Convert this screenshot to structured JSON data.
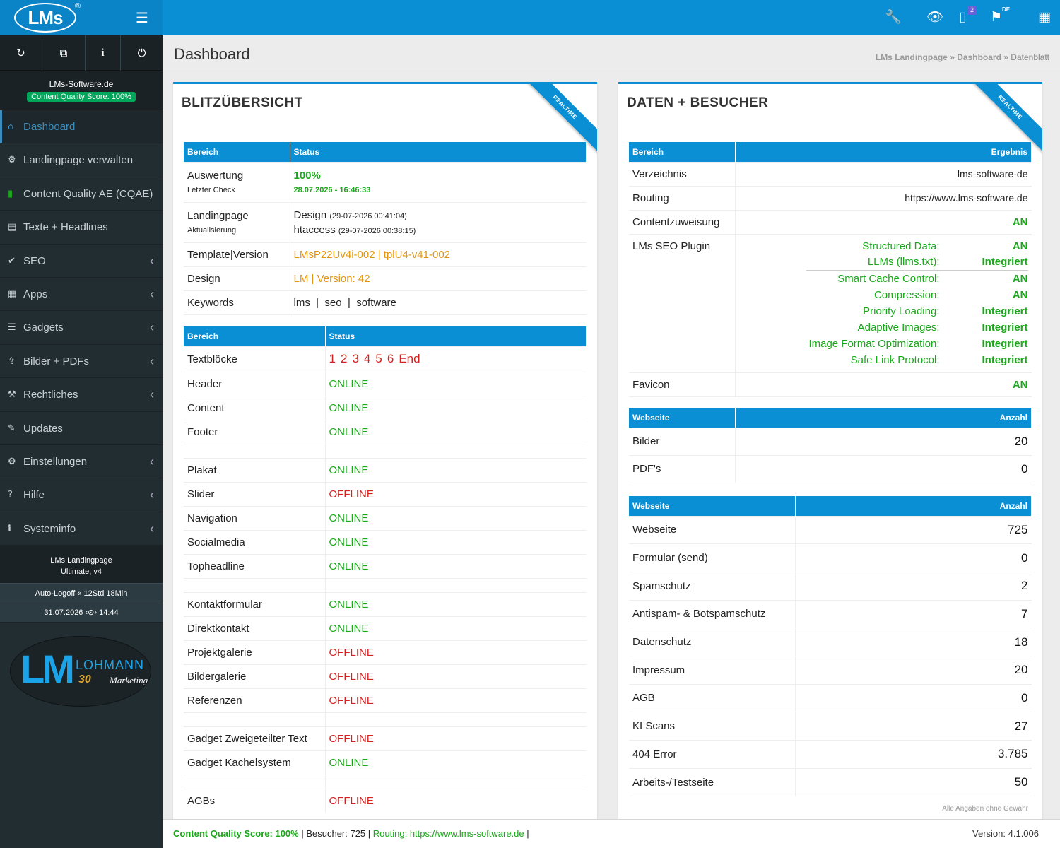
{
  "topbar": {
    "logo": "LMs",
    "reg": "®",
    "menu_icon": "☰",
    "badge_count": "2",
    "lang": "DE"
  },
  "quickbar": {
    "icons": [
      "refresh-icon",
      "copy-icon",
      "info-icon",
      "power-icon"
    ]
  },
  "sidebar": {
    "site": "LMs-Software.de",
    "quality": "Content Quality Score: 100%",
    "items": [
      {
        "label": "Dashboard",
        "icon": "home-icon",
        "glyph": "⌂",
        "chevron": false
      },
      {
        "label": "Landingpage verwalten",
        "icon": "gear-icon",
        "glyph": "⚙",
        "chevron": false
      },
      {
        "label": "Content Quality AE (CQAE)",
        "icon": "bar-chart-icon",
        "glyph": "▮",
        "chevron": false
      },
      {
        "label": "Texte + Headlines",
        "icon": "document-icon",
        "glyph": "▤",
        "chevron": false
      },
      {
        "label": "SEO",
        "icon": "check-icon",
        "glyph": "✔",
        "chevron": true
      },
      {
        "label": "Apps",
        "icon": "cubes-icon",
        "glyph": "▦",
        "chevron": true
      },
      {
        "label": "Gadgets",
        "icon": "list-icon",
        "glyph": "☰",
        "chevron": true
      },
      {
        "label": "Bilder + PDFs",
        "icon": "upload-icon",
        "glyph": "⇪",
        "chevron": true
      },
      {
        "label": "Rechtliches",
        "icon": "gavel-icon",
        "glyph": "⚒",
        "chevron": true
      },
      {
        "label": "Updates",
        "icon": "wrench-icon",
        "glyph": "✎",
        "chevron": false
      },
      {
        "label": "Einstellungen",
        "icon": "cogs-icon",
        "glyph": "⚙",
        "chevron": true
      },
      {
        "label": "Hilfe",
        "icon": "question-icon",
        "glyph": "?",
        "chevron": true
      },
      {
        "label": "Systeminfo",
        "icon": "info-circle-icon",
        "glyph": "ℹ",
        "chevron": true
      }
    ],
    "version_line1": "LMs Landingpage",
    "version_line2": "Ultimate, v4",
    "autologoff": "Auto-Logoff « 12Std 18Min",
    "datetime": "31.07.2026 ‹⊙› 14:44",
    "logo_lm": "LM",
    "logo_name": "LOHMANN",
    "logo_30": "30",
    "logo_marketing": "Marketing"
  },
  "header": {
    "title": "Dashboard",
    "crumb1": "LMs Landingpage",
    "crumb2": "Dashboard",
    "crumb3": "Datenblatt",
    "sep": "»"
  },
  "left": {
    "title": "BLITZÜBERSICHT",
    "ribbon": "REALTIME",
    "t1": {
      "h1": "Bereich",
      "h2": "Status",
      "auswertung": "Auswertung",
      "letzter_check": "Letzter Check",
      "score": "100%",
      "check_date": "28.07.2026 - 16:46:33",
      "landingpage": "Landingpage",
      "aktualisierung": "Aktualisierung",
      "design_label": "Design",
      "design_date": "(29-07-2026 00:41:04)",
      "htaccess_label": "htaccess",
      "htaccess_date": "(29-07-2026 00:38:15)",
      "template": "Template|Version",
      "template_val1": "LMsP22Uv4i-002",
      "template_sep": " | ",
      "template_val2": "tplU4-v41-002",
      "design": "Design",
      "design_val": "LM | Version: 42",
      "keywords": "Keywords",
      "kw": [
        "lms",
        "seo",
        "software"
      ],
      "kw_sep": "|"
    },
    "t2": {
      "h1": "Bereich",
      "h2": "Status",
      "textbloecke": "Textblöcke",
      "blocks": [
        "1",
        "2",
        "3",
        "4",
        "5",
        "6",
        "End"
      ],
      "rows": [
        {
          "label": "Header",
          "status": "ONLINE"
        },
        {
          "label": "Content",
          "status": "ONLINE"
        },
        {
          "label": "Footer",
          "status": "ONLINE"
        },
        {
          "spacer": true
        },
        {
          "label": "Plakat",
          "status": "ONLINE"
        },
        {
          "label": "Slider",
          "status": "OFFLINE"
        },
        {
          "label": "Navigation",
          "status": "ONLINE"
        },
        {
          "label": "Socialmedia",
          "status": "ONLINE"
        },
        {
          "label": "Topheadline",
          "status": "ONLINE"
        },
        {
          "spacer": true
        },
        {
          "label": "Kontaktformular",
          "status": "ONLINE"
        },
        {
          "label": "Direktkontakt",
          "status": "ONLINE"
        },
        {
          "label": "Projektgalerie",
          "status": "OFFLINE"
        },
        {
          "label": "Bildergalerie",
          "status": "OFFLINE"
        },
        {
          "label": "Referenzen",
          "status": "OFFLINE"
        },
        {
          "spacer": true
        },
        {
          "label": "Gadget Zweigeteilter Text",
          "status": "OFFLINE"
        },
        {
          "label": "Gadget Kachelsystem",
          "status": "ONLINE"
        },
        {
          "spacer": true
        },
        {
          "label": "AGBs",
          "status": "OFFLINE"
        }
      ]
    }
  },
  "right": {
    "title": "DATEN + BESUCHER",
    "ribbon": "REALTIME",
    "t1": {
      "h1": "Bereich",
      "h2": "Ergebnis",
      "verzeichnis": "Verzeichnis",
      "verzeichnis_val": "lms-software-de",
      "routing": "Routing",
      "routing_val": "https://www.lms-software.de",
      "contentzuweisung": "Contentzuweisung",
      "contentzuweisung_val": "AN",
      "plugin": "LMs SEO Plugin",
      "seo": [
        {
          "k": "Structured Data:",
          "v": "AN"
        },
        {
          "k": "LLMs (llms.txt):",
          "v": "Integriert"
        },
        {
          "k": "Smart Cache Control:",
          "v": "AN"
        },
        {
          "k": "Compression:",
          "v": "AN"
        },
        {
          "k": "Priority Loading:",
          "v": "Integriert"
        },
        {
          "k": "Adaptive Images:",
          "v": "Integriert"
        },
        {
          "k": "Image Format Optimization:",
          "v": "Integriert"
        },
        {
          "k": "Safe Link Protocol:",
          "v": "Integriert"
        }
      ],
      "favicon": "Favicon",
      "favicon_val": "AN"
    },
    "t2": {
      "h1": "Webseite",
      "h2": "Anzahl",
      "rows": [
        {
          "label": "Bilder",
          "value": "20"
        },
        {
          "label": "PDF's",
          "value": "0"
        }
      ]
    },
    "t3": {
      "h1": "Webseite",
      "h2": "Anzahl",
      "rows": [
        {
          "label": "Webseite",
          "value": "725"
        },
        {
          "label": "Formular (send)",
          "value": "0"
        },
        {
          "label": "Spamschutz",
          "value": "2"
        },
        {
          "label": "Antispam- & Botspamschutz",
          "value": "7"
        },
        {
          "label": "Datenschutz",
          "value": "18"
        },
        {
          "label": "Impressum",
          "value": "20"
        },
        {
          "label": "AGB",
          "value": "0"
        },
        {
          "label": "KI Scans",
          "value": "27"
        },
        {
          "label": "404 Error",
          "value": "3.785"
        },
        {
          "label": "Arbeits-/Testseite",
          "value": "50"
        }
      ]
    },
    "footnote": "Alle Angaben ohne Gewähr"
  },
  "statusbar": {
    "quality": "Content Quality Score: 100%",
    "sep": " | ",
    "besucher": "Besucher: 725",
    "routing": "Routing: https://www.lms-software.de",
    "sep2": " |",
    "version": "Version: 4.1.006"
  },
  "colors": {
    "primary": "#0a8ed4",
    "sidebar": "#222d32",
    "online": "#19a819",
    "offline": "#d62020",
    "orange": "#e39512"
  }
}
